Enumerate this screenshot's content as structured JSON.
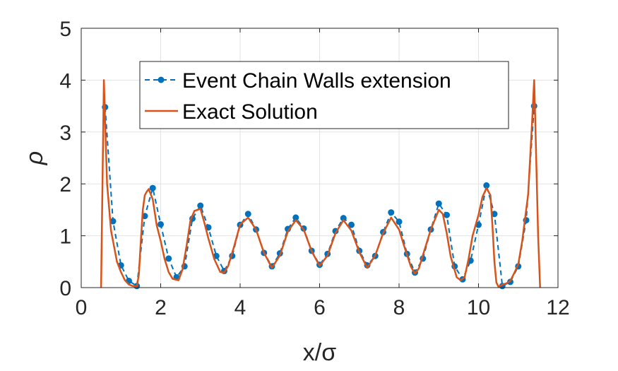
{
  "chart_data": {
    "type": "line",
    "xlabel": "x/σ",
    "ylabel": "ρ",
    "xlim": [
      0,
      12
    ],
    "ylim": [
      0,
      5
    ],
    "xticks": [
      "0",
      "2",
      "4",
      "6",
      "8",
      "10",
      "12"
    ],
    "yticks": [
      "0",
      "1",
      "2",
      "3",
      "4",
      "5"
    ],
    "grid": true,
    "legend_position": "top-center",
    "series": [
      {
        "name": "Event Chain Walls extension",
        "style": "dashed-with-dots",
        "color": "#0072BD",
        "x": [
          0.6,
          0.8,
          1.0,
          1.2,
          1.4,
          1.6,
          1.8,
          2.0,
          2.2,
          2.4,
          2.6,
          2.8,
          3.0,
          3.2,
          3.4,
          3.6,
          3.8,
          4.0,
          4.2,
          4.4,
          4.6,
          4.8,
          5.0,
          5.2,
          5.4,
          5.6,
          5.8,
          6.0,
          6.2,
          6.4,
          6.6,
          6.8,
          7.0,
          7.2,
          7.4,
          7.6,
          7.8,
          8.0,
          8.2,
          8.4,
          8.6,
          8.8,
          9.0,
          9.2,
          9.4,
          9.6,
          9.8,
          10.0,
          10.2,
          10.4,
          10.6,
          10.8,
          11.0,
          11.2,
          11.4
        ],
        "y": [
          3.48,
          1.28,
          0.43,
          0.13,
          0.03,
          1.38,
          1.92,
          1.22,
          0.56,
          0.2,
          0.41,
          1.33,
          1.58,
          1.16,
          0.61,
          0.32,
          0.61,
          1.21,
          1.42,
          1.12,
          0.67,
          0.41,
          0.66,
          1.13,
          1.35,
          1.14,
          0.71,
          0.44,
          0.65,
          1.09,
          1.34,
          1.21,
          0.71,
          0.43,
          0.61,
          1.07,
          1.45,
          1.27,
          0.65,
          0.29,
          0.56,
          1.12,
          1.62,
          1.4,
          0.41,
          0.16,
          0.52,
          1.21,
          1.97,
          1.42,
          0.03,
          0.11,
          0.41,
          1.3,
          3.5
        ]
      },
      {
        "name": "Exact Solution",
        "style": "solid",
        "color": "#D95319",
        "x": [
          0.5,
          0.57,
          0.6,
          0.65,
          0.75,
          0.9,
          1.0,
          1.1,
          1.2,
          1.3,
          1.4,
          1.45,
          1.5,
          1.55,
          1.6,
          1.65,
          1.7,
          1.8,
          1.9,
          2.0,
          2.1,
          2.2,
          2.3,
          2.45,
          2.55,
          2.65,
          2.75,
          2.85,
          3.0,
          3.1,
          3.2,
          3.35,
          3.5,
          3.6,
          3.7,
          3.85,
          4.0,
          4.2,
          4.4,
          4.6,
          4.8,
          5.0,
          5.2,
          5.4,
          5.6,
          5.8,
          6.0,
          6.2,
          6.4,
          6.6,
          6.8,
          7.0,
          7.2,
          7.4,
          7.6,
          7.8,
          8.0,
          8.15,
          8.3,
          8.4,
          8.5,
          8.65,
          8.8,
          9.0,
          9.1,
          9.2,
          9.3,
          9.45,
          9.55,
          9.65,
          9.75,
          9.85,
          10.0,
          10.1,
          10.2,
          10.3,
          10.35,
          10.4,
          10.45,
          10.5,
          10.55,
          10.6,
          10.7,
          10.8,
          10.9,
          11.0,
          11.1,
          11.25,
          11.35,
          11.4,
          11.43,
          11.5,
          11.55
        ],
        "y": [
          0.0,
          4.0,
          3.2,
          2.0,
          1.1,
          0.5,
          0.3,
          0.14,
          0.06,
          0.03,
          0.02,
          0.25,
          0.9,
          1.5,
          1.78,
          1.85,
          1.9,
          1.7,
          1.2,
          0.9,
          0.55,
          0.3,
          0.17,
          0.14,
          0.35,
          0.8,
          1.3,
          1.48,
          1.52,
          1.25,
          0.95,
          0.55,
          0.3,
          0.29,
          0.42,
          0.8,
          1.22,
          1.35,
          1.12,
          0.67,
          0.38,
          0.62,
          1.08,
          1.3,
          1.12,
          0.7,
          0.42,
          0.62,
          1.05,
          1.3,
          1.1,
          0.68,
          0.38,
          0.62,
          1.05,
          1.35,
          1.12,
          0.75,
          0.4,
          0.27,
          0.37,
          0.75,
          1.12,
          1.5,
          1.42,
          1.05,
          0.6,
          0.2,
          0.14,
          0.2,
          0.55,
          1.0,
          1.4,
          1.75,
          1.92,
          1.78,
          1.2,
          0.5,
          0.1,
          0.02,
          0.03,
          0.06,
          0.08,
          0.13,
          0.28,
          0.45,
          0.9,
          1.8,
          3.2,
          4.0,
          3.2,
          1.0,
          0.0
        ]
      }
    ]
  }
}
